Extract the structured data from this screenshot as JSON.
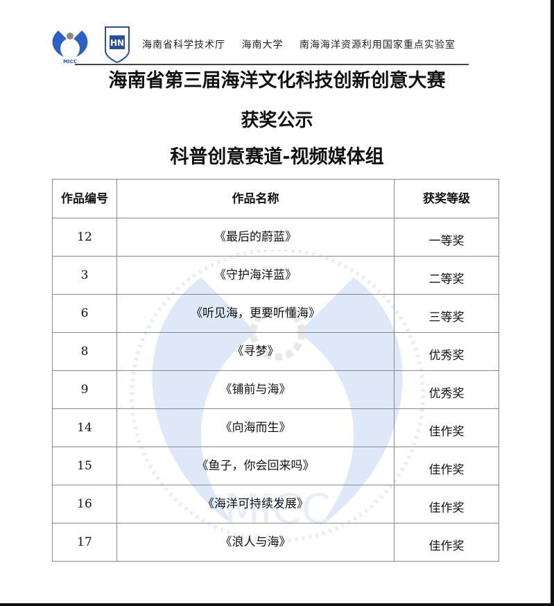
{
  "header": {
    "logo_text": "MICC",
    "organizations": [
      "海南省科学技术厅",
      "海南大学",
      "南海海洋资源利用国家重点实验室"
    ]
  },
  "title": "海南省第三届海洋文化科技创新创意大赛",
  "subtitle": "获奖公示",
  "category": "科普创意赛道-视频媒体组",
  "table": {
    "headers": [
      "作品编号",
      "作品名称",
      "获奖等级"
    ],
    "rows": [
      {
        "id": "12",
        "name": "《最后的蔚蓝》",
        "award": "一等奖"
      },
      {
        "id": "3",
        "name": "《守护海洋蓝》",
        "award": "二等奖"
      },
      {
        "id": "6",
        "name": "《听见海，更要听懂海》",
        "award": "三等奖"
      },
      {
        "id": "8",
        "name": "《寻梦》",
        "award": "优秀奖"
      },
      {
        "id": "9",
        "name": "《铺前与海》",
        "award": "优秀奖"
      },
      {
        "id": "14",
        "name": "《向海而生》",
        "award": "佳作奖"
      },
      {
        "id": "15",
        "name": "《鱼子，你会回来吗》",
        "award": "佳作奖"
      },
      {
        "id": "16",
        "name": "《海洋可持续发展》",
        "award": "佳作奖"
      },
      {
        "id": "17",
        "name": "《浪人与海》",
        "award": "佳作奖"
      }
    ]
  },
  "colors": {
    "logo_blue": "#2f5fc4",
    "watermark": "#6f9be0"
  }
}
